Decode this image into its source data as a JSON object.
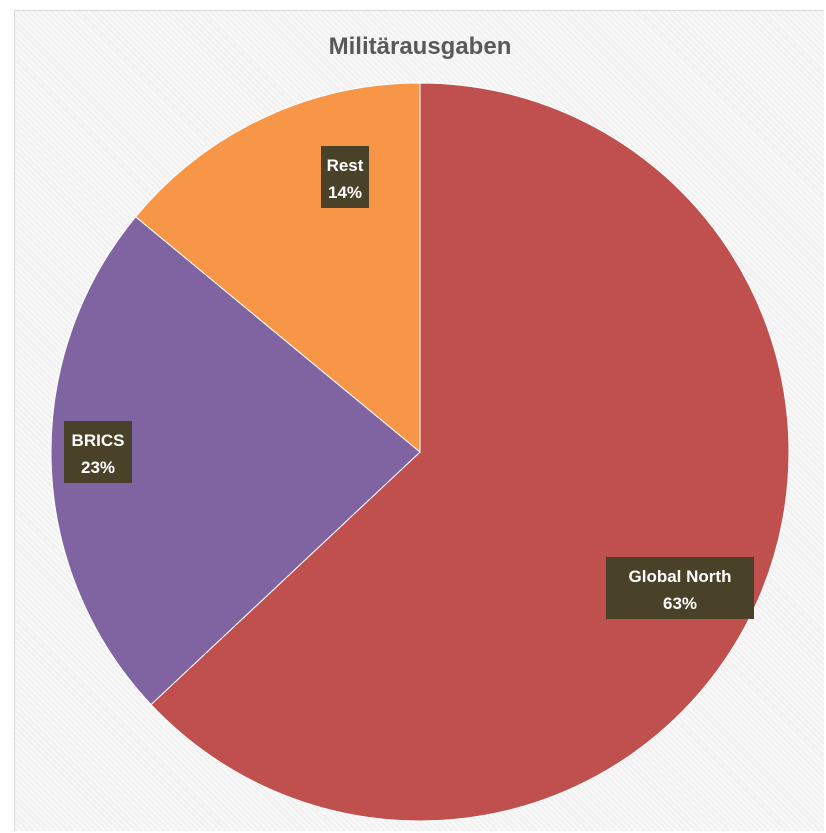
{
  "chart_data": {
    "type": "pie",
    "title": "Militärausgaben",
    "slices": [
      {
        "label": "Global North",
        "value": 63,
        "display": "63%",
        "color": "#c0504d"
      },
      {
        "label": "BRICS",
        "value": 23,
        "display": "23%",
        "color": "#8064a2"
      },
      {
        "label": "Rest",
        "value": 14,
        "display": "14%",
        "color": "#f79646"
      }
    ],
    "start_angle": "12 o'clock",
    "direction": "clockwise",
    "data_labels": "inside, category name and percentage"
  }
}
